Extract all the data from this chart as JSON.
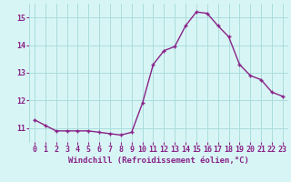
{
  "x": [
    0,
    1,
    2,
    3,
    4,
    5,
    6,
    7,
    8,
    9,
    10,
    11,
    12,
    13,
    14,
    15,
    16,
    17,
    18,
    19,
    20,
    21,
    22,
    23
  ],
  "y": [
    11.3,
    11.1,
    10.9,
    10.9,
    10.9,
    10.9,
    10.85,
    10.8,
    10.75,
    10.85,
    11.9,
    13.3,
    13.8,
    13.95,
    14.7,
    15.2,
    15.15,
    14.7,
    14.3,
    13.3,
    12.9,
    12.75,
    12.3,
    12.15
  ],
  "line_color": "#882288",
  "marker": "+",
  "marker_size": 3.5,
  "line_width": 1.0,
  "bg_color": "#d8f5f5",
  "grid_color": "#aadddd",
  "tick_color": "#882288",
  "label_color": "#882288",
  "xlabel": "Windchill (Refroidissement éolien,°C)",
  "ylim": [
    10.5,
    15.5
  ],
  "yticks": [
    11,
    12,
    13,
    14,
    15
  ],
  "xlim": [
    -0.5,
    23.5
  ],
  "xticks": [
    0,
    1,
    2,
    3,
    4,
    5,
    6,
    7,
    8,
    9,
    10,
    11,
    12,
    13,
    14,
    15,
    16,
    17,
    18,
    19,
    20,
    21,
    22,
    23
  ],
  "xlabel_fontsize": 6.5,
  "tick_fontsize": 6.0
}
